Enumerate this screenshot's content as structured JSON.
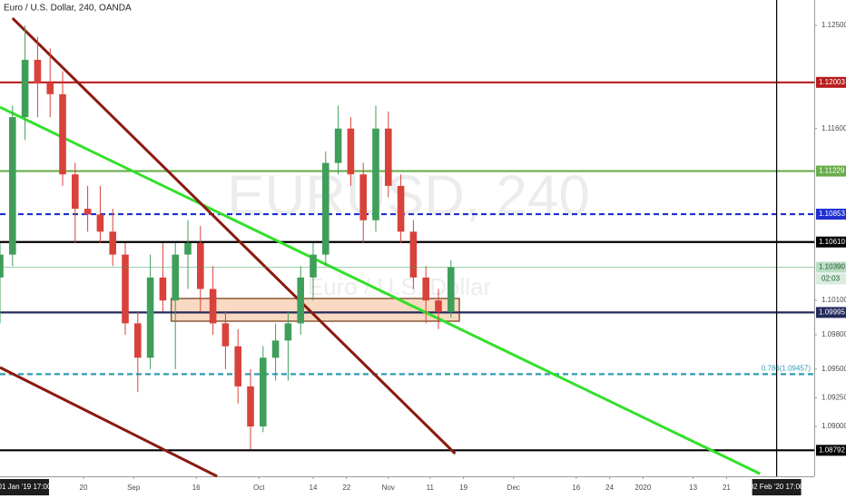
{
  "chart_data": {
    "type": "candlestick",
    "title": "Euro / U.S. Dollar, 240, OANDA",
    "watermark": "EURUSD, 240",
    "watermark_subtitle": "Euro / U.S. Dollar",
    "up_color": "#3f9f5a",
    "down_color": "#d8423b",
    "x": [
      "2019-07-31",
      "2019-08-03",
      "2019-08-06",
      "2019-08-09",
      "2019-08-12",
      "2019-08-15",
      "2019-08-18",
      "2019-08-21",
      "2019-08-24",
      "2019-08-27",
      "2019-08-30",
      "2019-09-02",
      "2019-09-05",
      "2019-09-08",
      "2019-09-11",
      "2019-09-14",
      "2019-09-17",
      "2019-09-20",
      "2019-09-23",
      "2019-09-26",
      "2019-09-29",
      "2019-10-02",
      "2019-10-05",
      "2019-10-08",
      "2019-10-11",
      "2019-10-14",
      "2019-10-17",
      "2019-10-20",
      "2019-10-23",
      "2019-10-26",
      "2019-10-29",
      "2019-11-01",
      "2019-11-04",
      "2019-11-07",
      "2019-11-10",
      "2019-11-13",
      "2019-11-16"
    ],
    "open": [
      1.103,
      1.105,
      1.117,
      1.122,
      1.12,
      1.119,
      1.112,
      1.109,
      1.1085,
      1.107,
      1.105,
      1.099,
      1.096,
      1.103,
      1.101,
      1.105,
      1.106,
      1.102,
      1.099,
      1.097,
      1.0935,
      1.09,
      1.096,
      1.0975,
      1.099,
      1.103,
      1.105,
      1.113,
      1.116,
      1.112,
      1.108,
      1.116,
      1.111,
      1.107,
      1.103,
      1.101,
      1.1
    ],
    "high": [
      1.106,
      1.118,
      1.125,
      1.124,
      1.123,
      1.121,
      1.113,
      1.111,
      1.111,
      1.109,
      1.106,
      1.1,
      1.105,
      1.106,
      1.106,
      1.108,
      1.1075,
      1.104,
      1.1,
      1.0985,
      1.095,
      1.097,
      1.099,
      1.1,
      1.104,
      1.106,
      1.114,
      1.118,
      1.117,
      1.113,
      1.118,
      1.1175,
      1.112,
      1.108,
      1.104,
      1.102,
      1.1045
    ],
    "low": [
      1.099,
      1.104,
      1.115,
      1.117,
      1.117,
      1.111,
      1.106,
      1.107,
      1.106,
      1.104,
      1.098,
      1.093,
      1.095,
      1.1,
      1.095,
      1.102,
      1.1,
      1.098,
      1.095,
      1.092,
      1.088,
      1.0895,
      1.094,
      1.094,
      1.098,
      1.101,
      1.104,
      1.112,
      1.111,
      1.106,
      1.107,
      1.11,
      1.106,
      1.102,
      1.099,
      1.0985,
      1.0995
    ],
    "close": [
      1.105,
      1.117,
      1.122,
      1.12,
      1.119,
      1.112,
      1.109,
      1.1085,
      1.107,
      1.105,
      1.099,
      1.096,
      1.103,
      1.101,
      1.105,
      1.106,
      1.102,
      1.099,
      1.097,
      1.0935,
      1.09,
      1.096,
      1.0975,
      1.099,
      1.103,
      1.105,
      1.113,
      1.116,
      1.112,
      1.108,
      1.116,
      1.111,
      1.107,
      1.103,
      1.101,
      1.1,
      1.1039
    ],
    "last_price_label": "1.10390",
    "countdown": "02:03",
    "xlim": [
      "2019-07-31",
      "2020-02-11"
    ],
    "xticks": [
      {
        "value": "2019-08-20",
        "label": "20"
      },
      {
        "value": "2019-09-01",
        "label": "Sep"
      },
      {
        "value": "2019-09-16",
        "label": "16"
      },
      {
        "value": "2019-10-01",
        "label": "Oct"
      },
      {
        "value": "2019-10-14",
        "label": "14"
      },
      {
        "value": "2019-10-22",
        "label": "22"
      },
      {
        "value": "2019-11-01",
        "label": "Nov"
      },
      {
        "value": "2019-11-11",
        "label": "11"
      },
      {
        "value": "2019-11-19",
        "label": "19"
      },
      {
        "value": "2019-12-01",
        "label": "Dec"
      },
      {
        "value": "2019-12-16",
        "label": "16"
      },
      {
        "value": "2019-12-24",
        "label": "24"
      },
      {
        "value": "2020-01-01",
        "label": "2020"
      },
      {
        "value": "2020-01-13",
        "label": "13"
      },
      {
        "value": "2020-01-21",
        "label": "21"
      }
    ],
    "ylim": [
      1.08565,
      1.12722
    ],
    "yticks": [
      {
        "value": 1.125,
        "label": "1.12500"
      },
      {
        "value": 1.116,
        "label": "1.11600"
      },
      {
        "value": 1.101,
        "label": "1.10100"
      },
      {
        "value": 1.098,
        "label": "1.09800"
      },
      {
        "value": 1.095,
        "label": "1.09500"
      },
      {
        "value": 1.0925,
        "label": "1.09250"
      },
      {
        "value": 1.09,
        "label": "1.09000"
      }
    ],
    "levels": [
      {
        "value": 1.12003,
        "label": "1.12003",
        "color": "#b71c1c",
        "dashed": false
      },
      {
        "value": 1.11229,
        "label": "1.11229",
        "color": "#6aac4b",
        "dashed": false
      },
      {
        "value": 1.10853,
        "label": "1.10853",
        "color": "#1f2fd0",
        "dashed": true
      },
      {
        "value": 1.1061,
        "label": "1.10610",
        "color": "#000000",
        "dashed": false
      },
      {
        "value": 1.09995,
        "label": "1.09995",
        "color": "#232a5c",
        "dashed": false
      },
      {
        "value": 1.08792,
        "label": "1.08792",
        "color": "#000000",
        "dashed": false
      }
    ],
    "fib_level": {
      "value": 1.09457,
      "label": "0.786(1.09457)",
      "color": "#2d9cb0"
    },
    "trendlines": [
      {
        "color": "#33e02a",
        "start": [
          "2019-07-31",
          1.11787
        ],
        "end": [
          "2020-01-29",
          1.08588
        ]
      },
      {
        "color": "#8b1a10",
        "start": [
          "2019-08-03",
          1.12563
        ],
        "end": [
          "2019-11-17",
          1.08763
        ]
      },
      {
        "color": "#8b1a10",
        "start": [
          "2019-07-31",
          1.09515
        ],
        "end": [
          "2019-09-21",
          1.08565
        ]
      }
    ],
    "zone": {
      "start": "2019-09-10",
      "end": "2019-11-18",
      "top": 1.10117,
      "bottom": 1.09919,
      "color": "#f6c9a6"
    },
    "crosshair": {
      "date": "2020-02-02",
      "label": "02 Feb '20 17:00"
    },
    "start_label": "01 Jan '19 17:00"
  }
}
